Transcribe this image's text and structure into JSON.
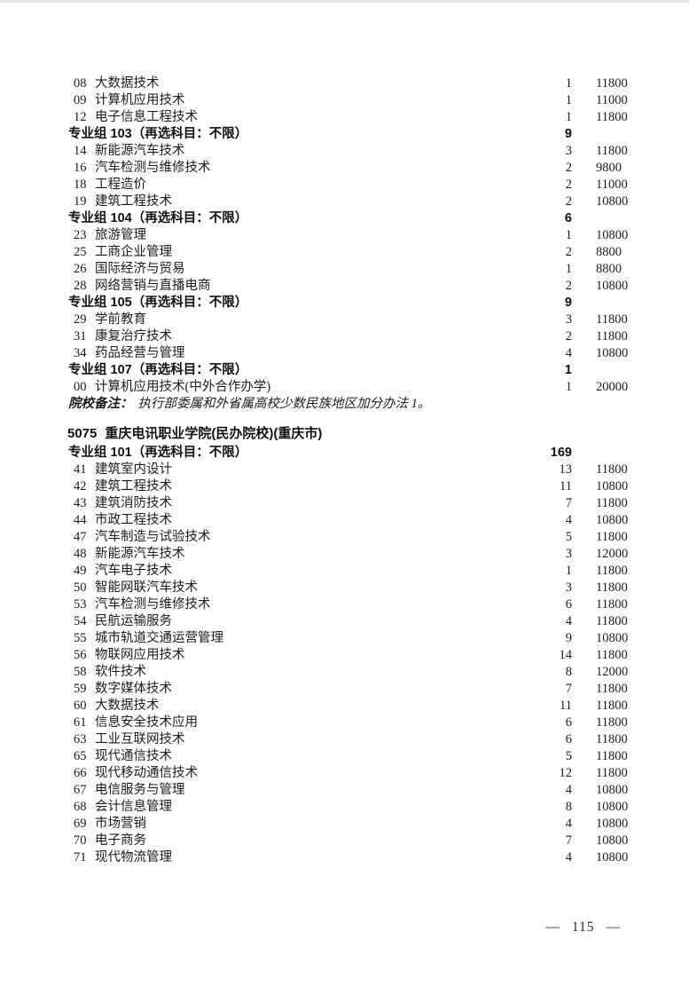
{
  "document": {
    "entries": [
      {
        "type": "major",
        "code": "08",
        "name": "大数据技术",
        "quota": "1",
        "fee": "11800"
      },
      {
        "type": "major",
        "code": "09",
        "name": "计算机应用技术",
        "quota": "1",
        "fee": "11000"
      },
      {
        "type": "major",
        "code": "12",
        "name": "电子信息工程技术",
        "quota": "1",
        "fee": "11800"
      },
      {
        "type": "group",
        "label": "专业组 103（再选科目：不限）",
        "quota": "9"
      },
      {
        "type": "major",
        "code": "14",
        "name": "新能源汽车技术",
        "quota": "3",
        "fee": "11800"
      },
      {
        "type": "major",
        "code": "16",
        "name": "汽车检测与维修技术",
        "quota": "2",
        "fee": "9800"
      },
      {
        "type": "major",
        "code": "18",
        "name": "工程造价",
        "quota": "2",
        "fee": "11000"
      },
      {
        "type": "major",
        "code": "19",
        "name": "建筑工程技术",
        "quota": "2",
        "fee": "10800"
      },
      {
        "type": "group",
        "label": "专业组 104（再选科目：不限）",
        "quota": "6"
      },
      {
        "type": "major",
        "code": "23",
        "name": "旅游管理",
        "quota": "1",
        "fee": "10800"
      },
      {
        "type": "major",
        "code": "25",
        "name": "工商企业管理",
        "quota": "2",
        "fee": "8800"
      },
      {
        "type": "major",
        "code": "26",
        "name": "国际经济与贸易",
        "quota": "1",
        "fee": "8800"
      },
      {
        "type": "major",
        "code": "28",
        "name": "网络营销与直播电商",
        "quota": "2",
        "fee": "10800"
      },
      {
        "type": "group",
        "label": "专业组 105（再选科目：不限）",
        "quota": "9"
      },
      {
        "type": "major",
        "code": "29",
        "name": "学前教育",
        "quota": "3",
        "fee": "11800"
      },
      {
        "type": "major",
        "code": "31",
        "name": "康复治疗技术",
        "quota": "2",
        "fee": "11800"
      },
      {
        "type": "major",
        "code": "34",
        "name": "药品经营与管理",
        "quota": "4",
        "fee": "10800"
      },
      {
        "type": "group",
        "label": "专业组 107（再选科目：不限）",
        "quota": "1"
      },
      {
        "type": "major",
        "code": "00",
        "name": "计算机应用技术(中外合作办学)",
        "quota": "1",
        "fee": "20000"
      },
      {
        "type": "note",
        "label": "院校备注：",
        "text": "执行部委属和外省属高校少数民族地区加分办法 1。"
      },
      {
        "type": "school",
        "code": "5075",
        "name": "重庆电讯职业学院(民办院校)(重庆市)"
      },
      {
        "type": "group",
        "label": "专业组 101（再选科目：不限）",
        "quota": "169"
      },
      {
        "type": "major",
        "code": "41",
        "name": "建筑室内设计",
        "quota": "13",
        "fee": "11800"
      },
      {
        "type": "major",
        "code": "42",
        "name": "建筑工程技术",
        "quota": "11",
        "fee": "10800"
      },
      {
        "type": "major",
        "code": "43",
        "name": "建筑消防技术",
        "quota": "7",
        "fee": "11800"
      },
      {
        "type": "major",
        "code": "44",
        "name": "市政工程技术",
        "quota": "4",
        "fee": "10800"
      },
      {
        "type": "major",
        "code": "47",
        "name": "汽车制造与试验技术",
        "quota": "5",
        "fee": "11800"
      },
      {
        "type": "major",
        "code": "48",
        "name": "新能源汽车技术",
        "quota": "3",
        "fee": "12000"
      },
      {
        "type": "major",
        "code": "49",
        "name": "汽车电子技术",
        "quota": "1",
        "fee": "11800"
      },
      {
        "type": "major",
        "code": "50",
        "name": "智能网联汽车技术",
        "quota": "3",
        "fee": "11800"
      },
      {
        "type": "major",
        "code": "53",
        "name": "汽车检测与维修技术",
        "quota": "6",
        "fee": "11800"
      },
      {
        "type": "major",
        "code": "54",
        "name": "民航运输服务",
        "quota": "4",
        "fee": "11800"
      },
      {
        "type": "major",
        "code": "55",
        "name": "城市轨道交通运营管理",
        "quota": "9",
        "fee": "10800"
      },
      {
        "type": "major",
        "code": "56",
        "name": "物联网应用技术",
        "quota": "14",
        "fee": "11800"
      },
      {
        "type": "major",
        "code": "58",
        "name": "软件技术",
        "quota": "8",
        "fee": "12000"
      },
      {
        "type": "major",
        "code": "59",
        "name": "数字媒体技术",
        "quota": "7",
        "fee": "11800"
      },
      {
        "type": "major",
        "code": "60",
        "name": "大数据技术",
        "quota": "11",
        "fee": "11800"
      },
      {
        "type": "major",
        "code": "61",
        "name": "信息安全技术应用",
        "quota": "6",
        "fee": "11800"
      },
      {
        "type": "major",
        "code": "63",
        "name": "工业互联网技术",
        "quota": "6",
        "fee": "11800"
      },
      {
        "type": "major",
        "code": "65",
        "name": "现代通信技术",
        "quota": "5",
        "fee": "11800"
      },
      {
        "type": "major",
        "code": "66",
        "name": "现代移动通信技术",
        "quota": "12",
        "fee": "11800"
      },
      {
        "type": "major",
        "code": "67",
        "name": "电信服务与管理",
        "quota": "4",
        "fee": "10800"
      },
      {
        "type": "major",
        "code": "68",
        "name": "会计信息管理",
        "quota": "8",
        "fee": "10800"
      },
      {
        "type": "major",
        "code": "69",
        "name": "市场营销",
        "quota": "4",
        "fee": "10800"
      },
      {
        "type": "major",
        "code": "70",
        "name": "电子商务",
        "quota": "7",
        "fee": "10800"
      },
      {
        "type": "major",
        "code": "71",
        "name": "现代物流管理",
        "quota": "4",
        "fee": "10800"
      }
    ],
    "footer": {
      "left_dash": "—",
      "page_number": "115",
      "right_dash": "—"
    }
  }
}
